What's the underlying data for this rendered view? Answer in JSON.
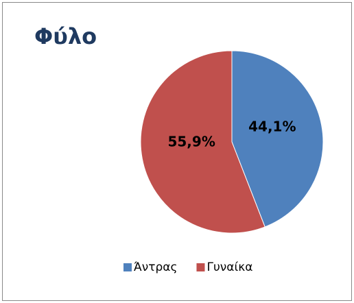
{
  "chart_data": {
    "type": "pie",
    "title": "Φύλο",
    "categories": [
      "Άντρας",
      "Γυναίκα"
    ],
    "values": [
      44.1,
      55.9
    ],
    "value_labels": [
      "44,1%",
      "55,9%"
    ],
    "colors": [
      "#4f81bd",
      "#c0504d"
    ],
    "legend": "bottom"
  }
}
